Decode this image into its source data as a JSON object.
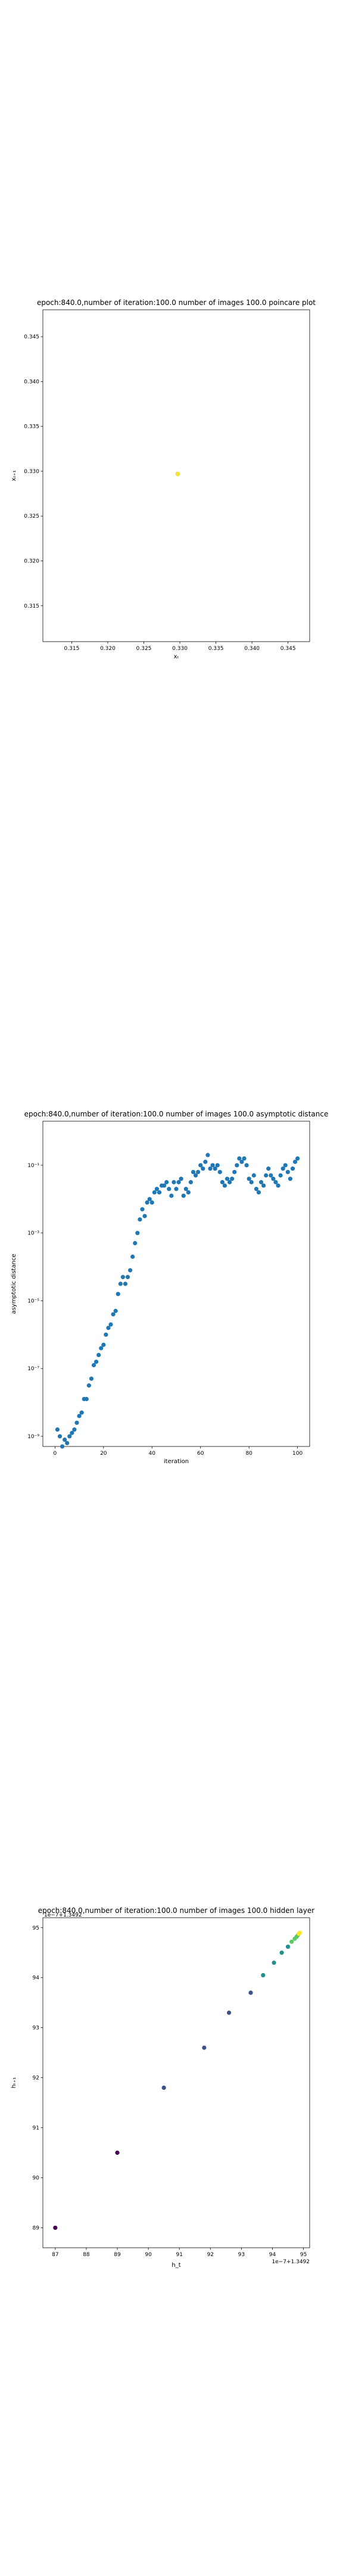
{
  "charts": [
    {
      "type": "scatter",
      "title": "epoch:840.0,number of iteration:100.0 number of images 100.0 poincare plot",
      "xlabel": "xₜ",
      "ylabel": "xₜ₊₁",
      "xlim": [
        0.311,
        0.348
      ],
      "ylim": [
        0.311,
        0.348
      ],
      "xticks": [
        "0.315",
        "0.320",
        "0.325",
        "0.330",
        "0.335",
        "0.340",
        "0.345"
      ],
      "yticks": [
        "0.315",
        "0.320",
        "0.325",
        "0.330",
        "0.335",
        "0.340",
        "0.345"
      ],
      "point_color": "#f0e442",
      "points": [
        [
          0.3297,
          0.3297
        ]
      ]
    },
    {
      "type": "scatter",
      "title": "epoch:840.0,number of iteration:100.0  number of images 100.0 asymptotic distance",
      "xlabel": "iteration",
      "ylabel": "asymptotic distance",
      "yscale": "log",
      "xlim": [
        -5,
        105
      ],
      "ylim_exp": [
        -9.3,
        0.3
      ],
      "xticks": [
        "0",
        "20",
        "40",
        "60",
        "80",
        "100"
      ],
      "yticks": [
        "10⁻⁹",
        "10⁻⁷",
        "10⁻⁵",
        "10⁻³",
        "10⁻¹"
      ],
      "point_color": "#1f77b4",
      "iterations_first": 1,
      "log10_values": [
        -8.8,
        -9.0,
        -9.3,
        -9.1,
        -9.2,
        -9.0,
        -8.9,
        -8.8,
        -8.6,
        -8.4,
        -8.3,
        -7.9,
        -7.9,
        -7.5,
        -7.3,
        -6.9,
        -6.8,
        -6.6,
        -6.4,
        -6.3,
        -6.0,
        -5.8,
        -5.7,
        -5.4,
        -5.3,
        -4.8,
        -4.5,
        -4.3,
        -4.5,
        -4.3,
        -4.1,
        -3.7,
        -3.3,
        -3.0,
        -2.6,
        -2.3,
        -2.5,
        -2.1,
        -2.0,
        -2.1,
        -1.8,
        -1.7,
        -1.8,
        -1.6,
        -1.6,
        -1.5,
        -1.7,
        -1.9,
        -1.5,
        -1.7,
        -1.5,
        -1.4,
        -1.9,
        -1.7,
        -1.8,
        -1.5,
        -1.2,
        -1.3,
        -1.2,
        -1.0,
        -1.1,
        -0.9,
        -0.7,
        -1.1,
        -1.0,
        -1.1,
        -1.0,
        -1.2,
        -1.5,
        -1.6,
        -1.4,
        -1.5,
        -1.4,
        -1.2,
        -1.0,
        -0.8,
        -0.9,
        -0.8,
        -1.0,
        -1.4,
        -1.5,
        -1.3,
        -1.7,
        -1.8,
        -1.5,
        -1.6,
        -1.3,
        -1.1,
        -1.3,
        -1.4,
        -1.5,
        -1.6,
        -1.3,
        -1.1,
        -1.0,
        -1.2,
        -1.4,
        -1.1,
        -0.9,
        -0.8
      ]
    },
    {
      "type": "scatter",
      "title": "epoch:840.0,number of iteration:100.0  number of images 100.0 hidden layer",
      "corner_label": "1e−7+1.3492",
      "offset_label": "1e−7+1.3492",
      "xlabel": "h_t",
      "ylabel": "hₜ₊₁",
      "xlim": [
        86.6,
        95.2
      ],
      "ylim": [
        88.6,
        95.2
      ],
      "xticks": [
        "87",
        "88",
        "89",
        "90",
        "91",
        "92",
        "93",
        "94",
        "95"
      ],
      "yticks": [
        "89",
        "90",
        "91",
        "92",
        "93",
        "94",
        "95"
      ],
      "colormap": [
        "#440154",
        "#3b528b",
        "#21918c",
        "#5ec962",
        "#fde725"
      ],
      "points": [
        [
          87.0,
          89.0
        ],
        [
          89.0,
          90.5
        ],
        [
          90.5,
          91.8
        ],
        [
          91.8,
          92.6
        ],
        [
          92.6,
          93.3
        ],
        [
          93.3,
          93.7
        ],
        [
          93.7,
          94.05
        ],
        [
          94.05,
          94.3
        ],
        [
          94.3,
          94.5
        ],
        [
          94.5,
          94.62
        ],
        [
          94.62,
          94.72
        ],
        [
          94.72,
          94.78
        ],
        [
          94.78,
          94.82
        ],
        [
          94.82,
          94.85
        ],
        [
          94.85,
          94.88
        ],
        [
          94.88,
          94.9
        ]
      ]
    }
  ]
}
